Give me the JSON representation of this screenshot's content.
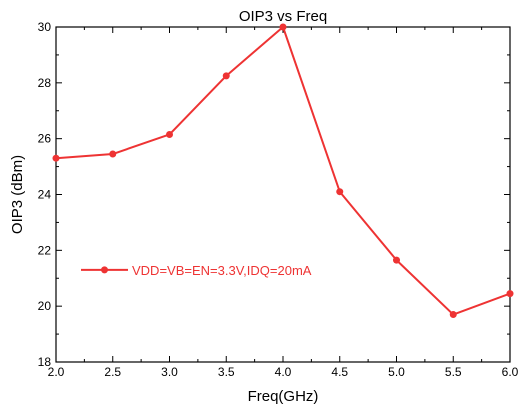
{
  "chart_data": {
    "type": "line",
    "title": "OIP3 vs Freq",
    "xlabel": "Freq(GHz)",
    "ylabel": "OIP3 (dBm)",
    "xlim": [
      2.0,
      6.0
    ],
    "ylim": [
      18,
      30
    ],
    "x_ticks": [
      "2.0",
      "2.5",
      "3.0",
      "3.5",
      "4.0",
      "4.5",
      "5.0",
      "5.5",
      "6.0"
    ],
    "y_ticks": [
      "18",
      "20",
      "22",
      "24",
      "26",
      "28",
      "30"
    ],
    "grid": false,
    "legend_position": "center-left",
    "series": [
      {
        "name": "VDD=VB=EN=3.3V,IDQ=20mA",
        "color": "#ee3333",
        "marker": "circle",
        "x": [
          2.0,
          2.5,
          3.0,
          3.5,
          4.0,
          4.5,
          5.0,
          5.5,
          6.0
        ],
        "y": [
          25.3,
          25.45,
          26.15,
          28.25,
          30.0,
          24.1,
          21.65,
          19.7,
          20.45
        ]
      }
    ]
  }
}
